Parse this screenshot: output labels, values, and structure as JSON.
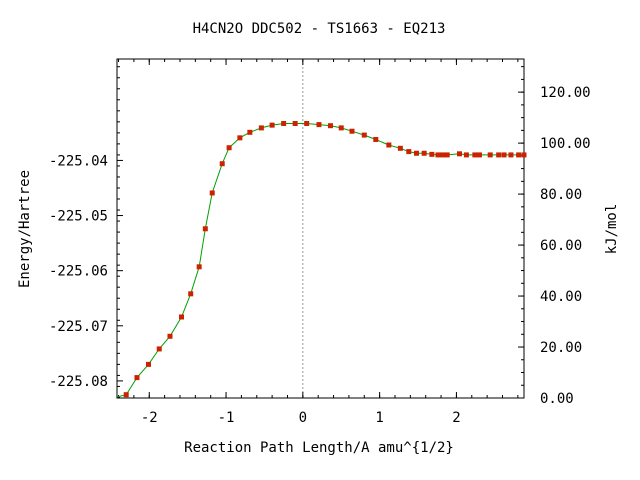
{
  "chart_data": {
    "type": "line",
    "title": "H4CN2O   DDC502 - TS1663 - EQ213",
    "xlabel": "Reaction Path Length/A amu^{1/2}",
    "ylabel": "Energy/Hartree",
    "y2label": "kJ/mol",
    "xlim": [
      -2.42,
      2.88
    ],
    "ylim": [
      -225.0831,
      -225.0216
    ],
    "y2lim": [
      0,
      133.0
    ],
    "x_ticks": [
      -2,
      -1,
      0,
      1,
      2
    ],
    "x_tick_labels": [
      "-2",
      "-1",
      "0",
      "1",
      "2"
    ],
    "y_ticks": [
      -225.04,
      -225.05,
      -225.06,
      -225.07,
      -225.08
    ],
    "y_tick_labels": [
      "-225.04",
      "-225.05",
      "-225.06",
      "-225.07",
      "-225.08"
    ],
    "y2_ticks": [
      0,
      20,
      40,
      60,
      80,
      100,
      120
    ],
    "y2_tick_labels": [
      "0.00",
      "20.00",
      "40.00",
      "60.00",
      "80.00",
      "100.00",
      "120.00"
    ],
    "ts_marker_x": 0,
    "grid": false,
    "line_color": "#00a000",
    "marker_color": "#cc2200",
    "series": [
      {
        "x": [
          -2.3,
          -2.16,
          -2.01,
          -1.87,
          -1.73,
          -1.58,
          -1.46,
          -1.35,
          -1.27,
          -1.18,
          -1.05,
          -0.96,
          -0.82,
          -0.69,
          -0.54,
          -0.4,
          -0.25,
          -0.1,
          0.05,
          0.21,
          0.36,
          0.5,
          0.64,
          0.8,
          0.95,
          1.12,
          1.27,
          1.38,
          1.48,
          1.58,
          1.68,
          1.76,
          1.82,
          1.88,
          2.04,
          2.13,
          2.24,
          2.3,
          2.44,
          2.55,
          2.62,
          2.71,
          2.81,
          2.88
        ],
        "y": [
          -225.0825,
          -225.0794,
          -225.077,
          -225.0742,
          -225.0719,
          -225.0684,
          -225.0642,
          -225.0593,
          -225.0524,
          -225.0459,
          -225.0406,
          -225.0377,
          -225.0359,
          -225.0349,
          -225.0341,
          -225.0336,
          -225.0333,
          -225.0333,
          -225.0333,
          -225.0335,
          -225.0337,
          -225.0341,
          -225.0347,
          -225.0354,
          -225.0362,
          -225.0372,
          -225.0378,
          -225.0384,
          -225.0387,
          -225.0387,
          -225.0389,
          -225.039,
          -225.039,
          -225.039,
          -225.0388,
          -225.039,
          -225.039,
          -225.039,
          -225.039,
          -225.039,
          -225.039,
          -225.039,
          -225.039,
          -225.039
        ]
      }
    ]
  }
}
